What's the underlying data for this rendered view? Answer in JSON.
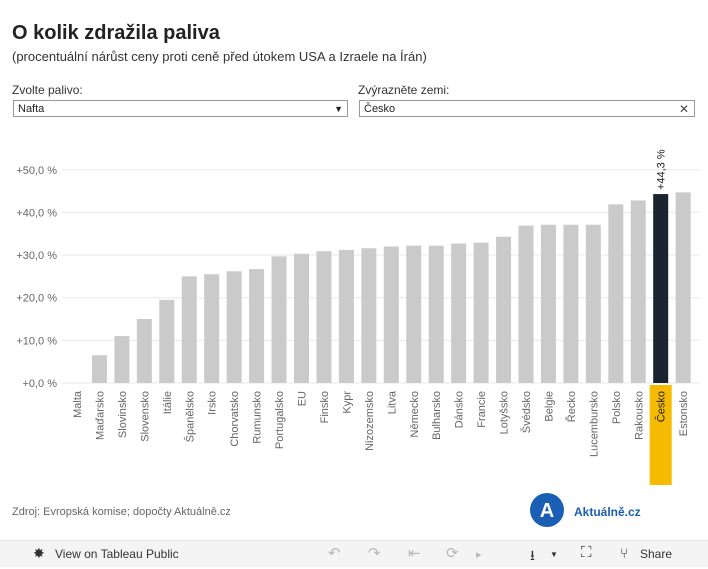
{
  "header": {
    "title": "O kolik zdražila paliva",
    "subtitle": "(procentuální nárůst ceny proti ceně před útokem USA a Izraele na Írán)"
  },
  "controls": {
    "fuel_label": "Zvolte palivo:",
    "fuel_value": "Nafta",
    "country_label": "Zvýrazněte zemi:",
    "country_value": "Česko"
  },
  "chart_data": {
    "type": "bar",
    "title": "O kolik zdražila paliva",
    "subtitle": "(procentuální nárůst ceny proti ceně před útokem USA a Izraele na Írán)",
    "xlabel": "",
    "ylabel": "",
    "ylim": [
      0,
      52
    ],
    "yticks": [
      0,
      10,
      20,
      30,
      40,
      50
    ],
    "ytick_labels": [
      "+0,0 %",
      "+10,0 %",
      "+20,0 %",
      "+30,0 %",
      "+40,0 %",
      "+50,0 %"
    ],
    "categories": [
      "Malta",
      "Maďarsko",
      "Slovinsko",
      "Slovensko",
      "Itálie",
      "Španělsko",
      "Irsko",
      "Chorvatsko",
      "Rumunsko",
      "Portugalsko",
      "EU",
      "Finsko",
      "Kypr",
      "Nizozemsko",
      "Litva",
      "Německo",
      "Bulharsko",
      "Dánsko",
      "Francie",
      "Lotyšsko",
      "Švédsko",
      "Belgie",
      "Řecko",
      "Lucembursko",
      "Polsko",
      "Rakousko",
      "Česko",
      "Estonsko"
    ],
    "values": [
      0,
      6.5,
      11.0,
      15.0,
      19.5,
      25.0,
      25.5,
      26.2,
      26.7,
      29.7,
      30.3,
      30.9,
      31.2,
      31.6,
      32.0,
      32.2,
      32.2,
      32.7,
      32.9,
      34.3,
      36.9,
      37.1,
      37.1,
      37.1,
      41.9,
      42.8,
      44.3,
      44.7
    ],
    "highlight": "Česko",
    "highlight_label": "+44,3 %",
    "colors": {
      "bar": "#cacaca",
      "highlight_bar": "#1a2430",
      "highlight_label_bg": "#f5bb00",
      "axis_text": "#666666",
      "grid": "#e8e8e8"
    },
    "legend": "none",
    "grid": true
  },
  "footer": {
    "source": "Zdroj: Evropská komise; dopočty Aktuálně.cz",
    "logo_letter": "A",
    "logo_text": "Aktuálně.cz"
  },
  "toolbar": {
    "view_label": "View on Tableau Public",
    "share_label": "Share",
    "icons": {
      "view": "✸",
      "undo": "↶",
      "redo": "↷",
      "revert": "⇤",
      "refresh": "⟳",
      "pause": "▸",
      "download": "⭳",
      "fullscreen": "⛶",
      "share": "⑂"
    }
  }
}
